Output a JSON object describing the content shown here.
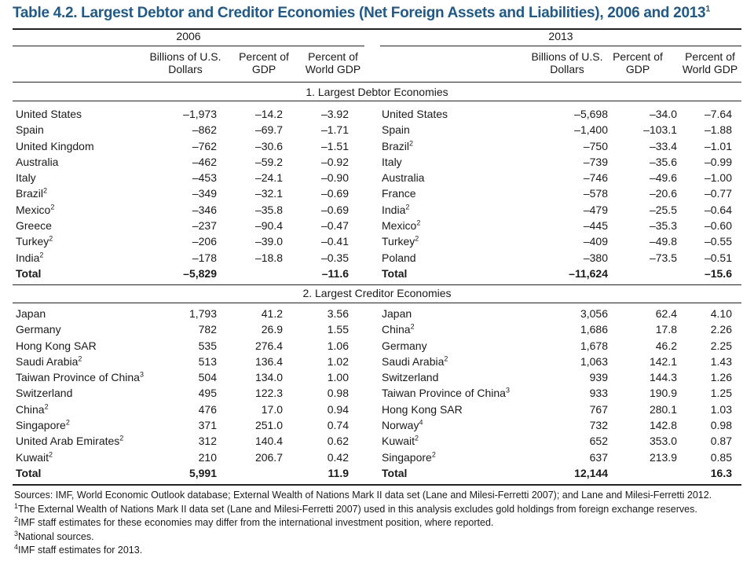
{
  "title": "Table 4.2.  Largest Debtor and Creditor Economies (Net Foreign Assets and Liabilities), 2006 and 2013",
  "title_sup": "1",
  "years": [
    "2006",
    "2013"
  ],
  "columns": [
    "Billions of U.S.\nDollars",
    "Percent of\nGDP",
    "Percent of\nWorld GDP"
  ],
  "section1": "1. Largest Debtor Economies",
  "section2": "2. Largest Creditor Economies",
  "debtors_2006": [
    {
      "name": "United States",
      "sup": "",
      "usd": "–1,973",
      "gdp": "–14.2",
      "world": "–3.92"
    },
    {
      "name": "Spain",
      "sup": "",
      "usd": "–862",
      "gdp": "–69.7",
      "world": "–1.71"
    },
    {
      "name": "United Kingdom",
      "sup": "",
      "usd": "–762",
      "gdp": "–30.6",
      "world": "–1.51"
    },
    {
      "name": "Australia",
      "sup": "",
      "usd": "–462",
      "gdp": "–59.2",
      "world": "–0.92"
    },
    {
      "name": "Italy",
      "sup": "",
      "usd": "–453",
      "gdp": "–24.1",
      "world": "–0.90"
    },
    {
      "name": "Brazil",
      "sup": "2",
      "usd": "–349",
      "gdp": "–32.1",
      "world": "–0.69"
    },
    {
      "name": "Mexico",
      "sup": "2",
      "usd": "–346",
      "gdp": "–35.8",
      "world": "–0.69"
    },
    {
      "name": "Greece",
      "sup": "",
      "usd": "–237",
      "gdp": "–90.4",
      "world": "–0.47"
    },
    {
      "name": "Turkey",
      "sup": "2",
      "usd": "–206",
      "gdp": "–39.0",
      "world": "–0.41"
    },
    {
      "name": "India",
      "sup": "2",
      "usd": "–178",
      "gdp": "–18.8",
      "world": "–0.35"
    },
    {
      "name": "Total",
      "sup": "",
      "usd": "–5,829",
      "gdp": "",
      "world": "–11.6",
      "total": true
    }
  ],
  "debtors_2013": [
    {
      "name": "United States",
      "sup": "",
      "usd": "–5,698",
      "gdp": "–34.0",
      "world": "–7.64"
    },
    {
      "name": "Spain",
      "sup": "",
      "usd": "–1,400",
      "gdp": "–103.1",
      "world": "–1.88"
    },
    {
      "name": "Brazil",
      "sup": "2",
      "usd": "–750",
      "gdp": "–33.4",
      "world": "–1.01"
    },
    {
      "name": "Italy",
      "sup": "",
      "usd": "–739",
      "gdp": "–35.6",
      "world": "–0.99"
    },
    {
      "name": "Australia",
      "sup": "",
      "usd": "–746",
      "gdp": "–49.6",
      "world": "–1.00"
    },
    {
      "name": "France",
      "sup": "",
      "usd": "–578",
      "gdp": "–20.6",
      "world": "–0.77"
    },
    {
      "name": "India",
      "sup": "2",
      "usd": "–479",
      "gdp": "–25.5",
      "world": "–0.64"
    },
    {
      "name": "Mexico",
      "sup": "2",
      "usd": "–445",
      "gdp": "–35.3",
      "world": "–0.60"
    },
    {
      "name": "Turkey",
      "sup": "2",
      "usd": "–409",
      "gdp": "–49.8",
      "world": "–0.55"
    },
    {
      "name": "Poland",
      "sup": "",
      "usd": "–380",
      "gdp": "–73.5",
      "world": "–0.51"
    },
    {
      "name": "Total",
      "sup": "",
      "usd": "–11,624",
      "gdp": "",
      "world": "–15.6",
      "total": true
    }
  ],
  "creditors_2006": [
    {
      "name": "Japan",
      "sup": "",
      "usd": "1,793",
      "gdp": "41.2",
      "world": "3.56"
    },
    {
      "name": "Germany",
      "sup": "",
      "usd": "782",
      "gdp": "26.9",
      "world": "1.55"
    },
    {
      "name": "Hong Kong SAR",
      "sup": "",
      "usd": "535",
      "gdp": "276.4",
      "world": "1.06"
    },
    {
      "name": "Saudi Arabia",
      "sup": "2",
      "usd": "513",
      "gdp": "136.4",
      "world": "1.02"
    },
    {
      "name": "Taiwan Province of China",
      "sup": "3",
      "usd": "504",
      "gdp": "134.0",
      "world": "1.00"
    },
    {
      "name": "Switzerland",
      "sup": "",
      "usd": "495",
      "gdp": "122.3",
      "world": "0.98"
    },
    {
      "name": "China",
      "sup": "2",
      "usd": "476",
      "gdp": "17.0",
      "world": "0.94"
    },
    {
      "name": "Singapore",
      "sup": "2",
      "usd": "371",
      "gdp": "251.0",
      "world": "0.74"
    },
    {
      "name": "United Arab Emirates",
      "sup": "2",
      "usd": "312",
      "gdp": "140.4",
      "world": "0.62"
    },
    {
      "name": "Kuwait",
      "sup": "2",
      "usd": "210",
      "gdp": "206.7",
      "world": "0.42"
    },
    {
      "name": "Total",
      "sup": "",
      "usd": "5,991",
      "gdp": "",
      "world": "11.9",
      "total": true
    }
  ],
  "creditors_2013": [
    {
      "name": "Japan",
      "sup": "",
      "usd": "3,056",
      "gdp": "62.4",
      "world": "4.10"
    },
    {
      "name": "China",
      "sup": "2",
      "usd": "1,686",
      "gdp": "17.8",
      "world": "2.26"
    },
    {
      "name": "Germany",
      "sup": "",
      "usd": "1,678",
      "gdp": "46.2",
      "world": "2.25"
    },
    {
      "name": "Saudi Arabia",
      "sup": "2",
      "usd": "1,063",
      "gdp": "142.1",
      "world": "1.43"
    },
    {
      "name": "Switzerland",
      "sup": "",
      "usd": "939",
      "gdp": "144.3",
      "world": "1.26"
    },
    {
      "name": "Taiwan Province of China",
      "sup": "3",
      "usd": "933",
      "gdp": "190.9",
      "world": "1.25"
    },
    {
      "name": "Hong Kong SAR",
      "sup": "",
      "usd": "767",
      "gdp": "280.1",
      "world": "1.03"
    },
    {
      "name": "Norway",
      "sup": "4",
      "usd": "732",
      "gdp": "142.8",
      "world": "0.98"
    },
    {
      "name": "Kuwait",
      "sup": "2",
      "usd": "652",
      "gdp": "353.0",
      "world": "0.87"
    },
    {
      "name": "Singapore",
      "sup": "2",
      "usd": "637",
      "gdp": "213.9",
      "world": "0.85"
    },
    {
      "name": "Total",
      "sup": "",
      "usd": "12,144",
      "gdp": "",
      "world": "16.3",
      "total": true
    }
  ],
  "footnotes": [
    {
      "sup": "",
      "text": "Sources: IMF, World Economic Outlook database; External Wealth of Nations Mark II data set (Lane and Milesi-Ferretti 2007); and Lane and Milesi-Ferretti 2012."
    },
    {
      "sup": "1",
      "text": "The External Wealth of Nations Mark II data set (Lane and Milesi-Ferretti 2007) used in this analysis excludes gold holdings from foreign exchange reserves."
    },
    {
      "sup": "2",
      "text": "IMF staff estimates for these economies may differ from the international investment position, where reported."
    },
    {
      "sup": "3",
      "text": "National sources."
    },
    {
      "sup": "4",
      "text": "IMF staff estimates for 2013."
    }
  ]
}
